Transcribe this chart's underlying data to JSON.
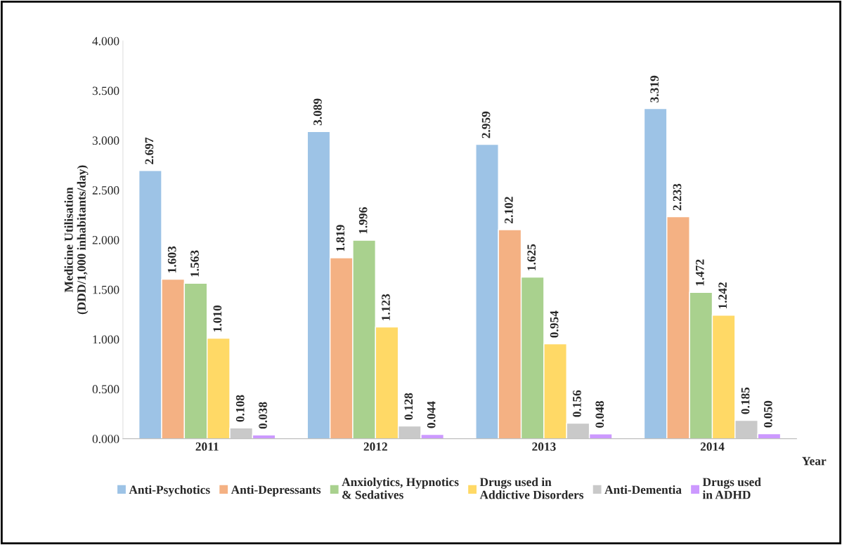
{
  "chart_data": {
    "type": "bar",
    "ylabel": "Medicine Utilisation\n(DDD/1,000 inhabitants/day)",
    "xlabel": "Year",
    "categories": [
      "2011",
      "2012",
      "2013",
      "2014"
    ],
    "series": [
      {
        "name": "Anti-Psychotics",
        "color": "#9dc3e6",
        "values": [
          2.697,
          3.089,
          2.959,
          3.319
        ],
        "value_labels": [
          "2.697",
          "3.089",
          "2.959",
          "3.319"
        ]
      },
      {
        "name": "Anti-Depressants",
        "color": "#f4b183",
        "values": [
          1.603,
          1.819,
          2.102,
          2.233
        ],
        "value_labels": [
          "1.603",
          "1.819",
          "2.102",
          "2.233"
        ]
      },
      {
        "name": "Anxiolytics, Hypnotics\n& Sedatives",
        "color": "#a9d18e",
        "values": [
          1.563,
          1.996,
          1.625,
          1.472
        ],
        "value_labels": [
          "1.563",
          "1.996",
          "1.625",
          "1.472"
        ]
      },
      {
        "name": "Drugs used in\nAddictive Disorders",
        "color": "#ffd966",
        "values": [
          1.01,
          1.123,
          0.954,
          1.242
        ],
        "value_labels": [
          "1.010",
          "1.123",
          "0.954",
          "1.242"
        ]
      },
      {
        "name": "Anti-Dementia",
        "color": "#c9c9c9",
        "values": [
          0.108,
          0.128,
          0.156,
          0.185
        ],
        "value_labels": [
          "0.108",
          "0.128",
          "0.156",
          "0.185"
        ]
      },
      {
        "name": "Drugs used\nin ADHD",
        "color": "#cc99ff",
        "values": [
          0.038,
          0.044,
          0.048,
          0.05
        ],
        "value_labels": [
          "0.038",
          "0.044",
          "0.048",
          "0.050"
        ]
      }
    ],
    "ylim": [
      0,
      4
    ],
    "yticks": [
      {
        "value": 0,
        "label": "0.000"
      },
      {
        "value": 0.5,
        "label": "0.500"
      },
      {
        "value": 1,
        "label": "1.000"
      },
      {
        "value": 1.5,
        "label": "1.500"
      },
      {
        "value": 2,
        "label": "2.000"
      },
      {
        "value": 2.5,
        "label": "2.500"
      },
      {
        "value": 3,
        "label": "3.000"
      },
      {
        "value": 3.5,
        "label": "3.500"
      },
      {
        "value": 4,
        "label": "4.000"
      }
    ],
    "legend": "bottom",
    "grid": false
  }
}
